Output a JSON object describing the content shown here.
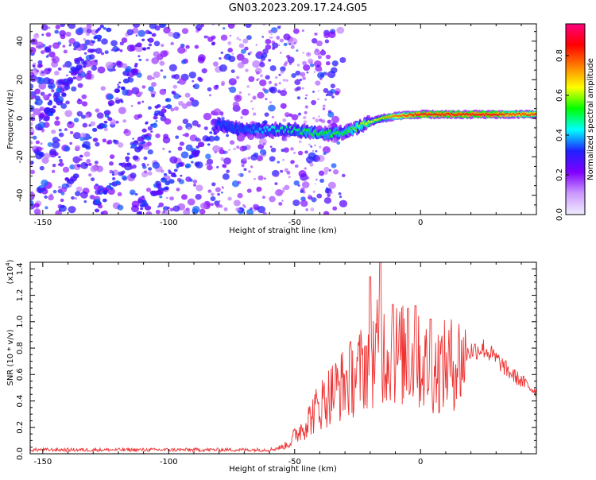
{
  "title": "GN03.2023.209.17.24.G05",
  "chart_data": [
    {
      "type": "heatmap",
      "xlabel": "Height of straight line (km)",
      "ylabel": "Frequency (Hz)",
      "xlim": [
        -155,
        46
      ],
      "ylim": [
        -50,
        49
      ],
      "xticks": [
        -150,
        -100,
        -50,
        0
      ],
      "yticks": [
        -40,
        -20,
        0,
        20,
        40
      ],
      "colorbar": {
        "label": "Normalized spectral amplitude",
        "ticks": [
          0.0,
          0.2,
          0.4,
          0.6,
          0.8
        ],
        "range": [
          0,
          0.96
        ],
        "colormap": [
          "#eeeeff",
          "#cc99ff",
          "#8000ff",
          "#2020ff",
          "#00ffff",
          "#00ff00",
          "#ffff00",
          "#ff8000",
          "#ff0000",
          "#ff0080"
        ]
      },
      "ridge": {
        "x": [
          -81,
          -75,
          -70,
          -65,
          -60,
          -55,
          -50,
          -45,
          -40,
          -35,
          -30,
          -25,
          -20,
          -15,
          -10,
          -5,
          0,
          5,
          10,
          15,
          20,
          25,
          30,
          35,
          40,
          46
        ],
        "y": [
          -3,
          -5,
          -6,
          -6,
          -6,
          -6,
          -6,
          -7,
          -8,
          -8,
          -7,
          -5,
          -2,
          0,
          1,
          1.5,
          2,
          2,
          2,
          2,
          2,
          2,
          2,
          2,
          2,
          2
        ],
        "amplitude": [
          0.3,
          0.35,
          0.35,
          0.4,
          0.45,
          0.5,
          0.5,
          0.55,
          0.55,
          0.55,
          0.55,
          0.6,
          0.65,
          0.7,
          0.8,
          0.85,
          0.9,
          0.9,
          0.9,
          0.9,
          0.9,
          0.9,
          0.9,
          0.85,
          0.85,
          0.85
        ]
      }
    },
    {
      "type": "line",
      "xlabel": "Height of straight line (km)",
      "ylabel": "SNR (10 * v/v)",
      "scale_note": "(x10",
      "scale_exp": "4",
      "xlim": [
        -155,
        46
      ],
      "ylim": [
        0,
        1.45
      ],
      "xticks": [
        -150,
        -100,
        -50,
        0
      ],
      "yticks": [
        0.0,
        0.2,
        0.4,
        0.6,
        0.8,
        1.0,
        1.2,
        1.4
      ],
      "color": "#ee3333",
      "envelope": {
        "x": [
          -155,
          -60,
          -55,
          -52,
          -50,
          -45,
          -40,
          -35,
          -30,
          -25,
          -20,
          -16,
          -10,
          -5,
          0,
          5,
          10,
          15,
          20,
          25,
          30,
          35,
          40,
          46
        ],
        "y": [
          0.03,
          0.03,
          0.05,
          0.08,
          0.14,
          0.25,
          0.38,
          0.48,
          0.55,
          0.62,
          0.75,
          0.8,
          0.78,
          0.75,
          0.7,
          0.65,
          0.68,
          0.72,
          0.78,
          0.8,
          0.72,
          0.62,
          0.55,
          0.47
        ]
      },
      "peaks": {
        "x": [
          -16,
          -20,
          -11,
          -5,
          -2,
          4
        ],
        "y": [
          1.45,
          1.34,
          1.13,
          1.1,
          1.12,
          1.02
        ]
      }
    }
  ]
}
